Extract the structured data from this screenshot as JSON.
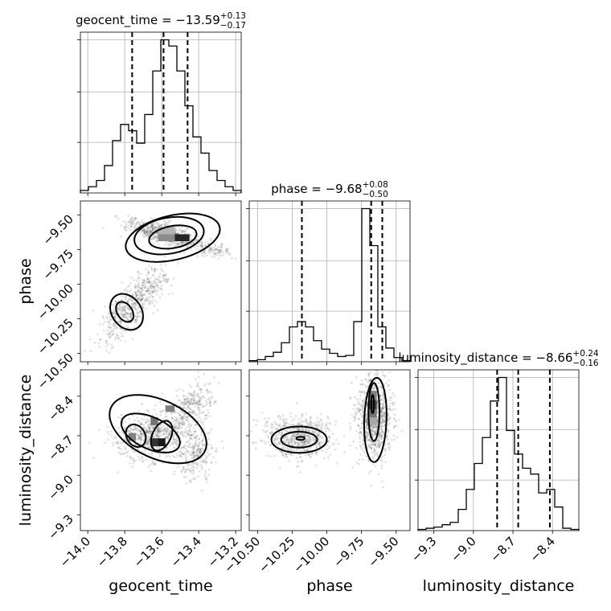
{
  "chart_data": {
    "type": "corner",
    "parameters": [
      {
        "key": "geocent_time",
        "label": "geocent_time",
        "title_prefix": "geocent_time = −13.59",
        "title_sup": "+0.13",
        "title_sub": "−0.17",
        "range": [
          -14.04,
          -13.17
        ],
        "ticks": [
          -14.0,
          -13.8,
          -13.6,
          -13.4,
          -13.2
        ],
        "tick_labels": [
          "−14.0",
          "−13.8",
          "−13.6",
          "−13.4",
          "−13.2"
        ],
        "quantiles": [
          -13.76,
          -13.59,
          -13.46
        ],
        "histogram": {
          "bin_start": -14.04,
          "bin_width": 0.0435,
          "counts": [
            2,
            5,
            10,
            22,
            42,
            55,
            50,
            40,
            63,
            98,
            123,
            118,
            98,
            70,
            45,
            32,
            18,
            10,
            5,
            2
          ]
        }
      },
      {
        "key": "phase",
        "label": "phase",
        "title_prefix": "phase = −9.68",
        "title_sup": "+0.08",
        "title_sub": "−0.50",
        "range": [
          -10.56,
          -9.4
        ],
        "ticks": [
          -10.5,
          -10.25,
          -10.0,
          -9.75,
          -9.5
        ],
        "tick_labels": [
          "−10.50",
          "−10.25",
          "−10.00",
          "−9.75",
          "−9.50"
        ],
        "quantiles": [
          -10.18,
          -9.68,
          -9.6
        ],
        "histogram": {
          "bin_start": -10.56,
          "bin_width": 0.058,
          "counts": [
            1,
            2,
            5,
            9,
            18,
            33,
            38,
            33,
            20,
            12,
            8,
            5,
            6,
            38,
            145,
            110,
            33,
            13,
            4,
            1
          ]
        }
      },
      {
        "key": "luminosity_distance",
        "label": "luminosity_distance",
        "title_prefix": "luminosity_distance = −8.66",
        "title_sup": "+0.24",
        "title_sub": "−0.16",
        "range": [
          -9.42,
          -8.2
        ],
        "ticks": [
          -9.3,
          -9.0,
          -8.7,
          -8.4
        ],
        "tick_labels": [
          "−9.3",
          "−9.0",
          "−8.7",
          "−8.4"
        ],
        "quantiles": [
          -8.82,
          -8.66,
          -8.42
        ],
        "histogram": {
          "bin_start": -9.42,
          "bin_width": 0.061,
          "counts": [
            1,
            2,
            3,
            5,
            7,
            18,
            35,
            57,
            79,
            110,
            130,
            85,
            65,
            53,
            48,
            32,
            35,
            20,
            2,
            1
          ]
        }
      }
    ],
    "pairs": [
      {
        "x": "geocent_time",
        "y": "phase",
        "clusters": [
          {
            "center": [
              -13.58,
              -9.64
            ],
            "spread": [
              0.1,
              0.05
            ],
            "corr": -0.7,
            "n": 700
          },
          {
            "center": [
              -13.32,
              -9.76
            ],
            "spread": [
              0.05,
              0.03
            ],
            "corr": -0.5,
            "n": 90
          },
          {
            "center": [
              -13.8,
              -10.2
            ],
            "spread": [
              0.07,
              0.13
            ],
            "corr": 0.7,
            "n": 380
          },
          {
            "center": [
              -13.66,
              -10.02
            ],
            "spread": [
              0.06,
              0.1
            ],
            "corr": 0.6,
            "n": 220
          }
        ],
        "density_cells": [
          {
            "x": [
              -13.53,
              -13.49
            ],
            "y": [
              -9.69,
              -9.64
            ],
            "level": 0.85
          },
          {
            "x": [
              -13.49,
              -13.45
            ],
            "y": [
              -9.69,
              -9.64
            ],
            "level": 0.85
          },
          {
            "x": [
              -13.62,
              -13.53
            ],
            "y": [
              -9.69,
              -9.64
            ],
            "level": 0.45
          },
          {
            "x": [
              -13.62,
              -13.53
            ],
            "y": [
              -9.64,
              -9.59
            ],
            "level": 0.3
          }
        ],
        "contours": [
          {
            "center": [
              -13.56,
              -9.65
            ],
            "radii": [
              0.19,
              0.13
            ],
            "angle": -10
          },
          {
            "center": [
              -13.54,
              -9.665
            ],
            "radii": [
              0.26,
              0.16
            ],
            "angle": -13
          },
          {
            "center": [
              -13.54,
              -9.66
            ],
            "radii": [
              0.13,
              0.08
            ],
            "angle": -10
          },
          {
            "center": [
              -13.79,
              -10.2
            ],
            "radii": [
              0.08,
              0.14
            ],
            "angle": -35
          },
          {
            "center": [
              -13.8,
              -10.2
            ],
            "radii": [
              0.04,
              0.08
            ],
            "angle": -35
          }
        ]
      },
      {
        "x": "geocent_time",
        "y": "luminosity_distance",
        "clusters": [
          {
            "center": [
              -13.65,
              -8.7
            ],
            "spread": [
              0.1,
              0.09
            ],
            "corr": 0.2,
            "n": 700
          },
          {
            "center": [
              -13.45,
              -8.5
            ],
            "spread": [
              0.06,
              0.1
            ],
            "corr": 0.5,
            "n": 300
          },
          {
            "center": [
              -13.42,
              -8.85
            ],
            "spread": [
              0.05,
              0.09
            ],
            "corr": 0.0,
            "n": 250
          }
        ],
        "density_cells": [
          {
            "x": [
              -13.58,
              -13.53
            ],
            "y": [
              -8.52,
              -8.47
            ],
            "level": 0.5
          },
          {
            "x": [
              -13.66,
              -13.62
            ],
            "y": [
              -8.62,
              -8.56
            ],
            "level": 0.55
          },
          {
            "x": [
              -13.62,
              -13.58
            ],
            "y": [
              -8.78,
              -8.72
            ],
            "level": 0.9
          },
          {
            "x": [
              -13.66,
              -13.62
            ],
            "y": [
              -8.78,
              -8.72
            ],
            "level": 0.8
          },
          {
            "x": [
              -13.78,
              -13.74
            ],
            "y": [
              -8.74,
              -8.68
            ],
            "level": 0.5
          }
        ],
        "contours": [
          {
            "center": [
              -13.74,
              -8.7
            ],
            "radii": [
              0.05,
              0.09
            ],
            "angle": -30
          },
          {
            "center": [
              -13.6,
              -8.7
            ],
            "radii": [
              0.05,
              0.12
            ],
            "angle": 25
          },
          {
            "center": [
              -13.66,
              -8.68
            ],
            "radii": [
              0.17,
              0.12
            ],
            "angle": 25
          },
          {
            "center": [
              -13.62,
              -8.65
            ],
            "radii": [
              0.28,
              0.22
            ],
            "angle": 25
          }
        ]
      },
      {
        "x": "phase",
        "y": "luminosity_distance",
        "clusters": [
          {
            "center": [
              -10.2,
              -8.72
            ],
            "spread": [
              0.12,
              0.08
            ],
            "corr": 0.0,
            "n": 650
          },
          {
            "center": [
              -9.66,
              -8.55
            ],
            "spread": [
              0.06,
              0.16
            ],
            "corr": 0.0,
            "n": 1000
          }
        ],
        "density_cells": [
          {
            "x": [
              -9.7,
              -9.64
            ],
            "y": [
              -8.56,
              -8.5
            ],
            "level": 0.55
          },
          {
            "x": [
              -9.7,
              -9.64
            ],
            "y": [
              -8.5,
              -8.43
            ],
            "level": 0.75
          },
          {
            "x": [
              -9.7,
              -9.64
            ],
            "y": [
              -8.43,
              -8.36
            ],
            "level": 0.5
          },
          {
            "x": [
              -9.7,
              -9.64
            ],
            "y": [
              -8.62,
              -8.56
            ],
            "level": 0.35
          }
        ],
        "contours": [
          {
            "center": [
              -10.19,
              -8.72
            ],
            "radii": [
              0.03,
              0.012
            ],
            "angle": 0
          },
          {
            "center": [
              -10.2,
              -8.73
            ],
            "radii": [
              0.13,
              0.06
            ],
            "angle": 0
          },
          {
            "center": [
              -10.2,
              -8.73
            ],
            "radii": [
              0.2,
              0.1
            ],
            "angle": 0
          },
          {
            "center": [
              -9.67,
              -8.46
            ],
            "radii": [
              0.01,
              0.07
            ],
            "angle": 0
          },
          {
            "center": [
              -9.66,
              -8.52
            ],
            "radii": [
              0.04,
              0.22
            ],
            "angle": 0
          },
          {
            "center": [
              -9.65,
              -8.58
            ],
            "radii": [
              0.08,
              0.32
            ],
            "angle": 2
          }
        ]
      }
    ]
  }
}
